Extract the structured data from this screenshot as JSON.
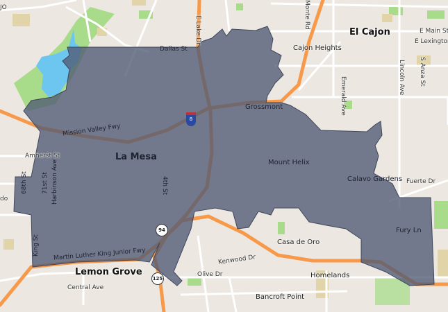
{
  "map": {
    "colors": {
      "land": "#ece8e1",
      "road": "#ffffff",
      "highway": "#f7994a",
      "water": "#6cc6ef",
      "park": "#a9dc8a",
      "region_fill": "#4f5a73",
      "boundary": "#3f475c"
    },
    "labels": {
      "corner_fragment": "JO",
      "e_lake_dr": "E Lake Dr",
      "monte_rd": "Monte Rd",
      "el_cajon": "El Cajon",
      "e_main_st": "E Main St",
      "e_lexington": "E Lexington A",
      "dallas_st": "Dallas St",
      "cajon_heights": "Cajon Heights",
      "lincoln_ave": "Lincoln Ave",
      "s_anza_st": "S Anza St",
      "emerald_ave": "Emerald Ave",
      "grossmont": "Grossmont",
      "mission_valley_fwy": "Mission Valley Fwy",
      "amherst_st": "Amherst St",
      "la_mesa": "La Mesa",
      "mount_helix": "Mount Helix",
      "calavo_gardens": "Calavo Gardens",
      "fuerte_dr": "Fuerte Dr",
      "st_68th": "68th St",
      "st_71st": "71st St",
      "harbinson_ave": "Harbinson Ave",
      "st_4th": "4th St",
      "fury_ln": "Fury Ln",
      "casa_de_oro": "Casa de Oro",
      "king_st": "King St",
      "mlk_fwy": "Martin Luther King Junior Fwy",
      "kenwood_dr": "Kenwood Dr",
      "lemon_grove": "Lemon Grove",
      "olive_dr": "Olive Dr",
      "homelands": "Homelands",
      "central_ave": "Central Ave",
      "bancroft_point": "Bancroft Point",
      "left_fragment": "do"
    },
    "shields": {
      "i8": "8",
      "sr94": "94",
      "sr125": "125"
    }
  }
}
